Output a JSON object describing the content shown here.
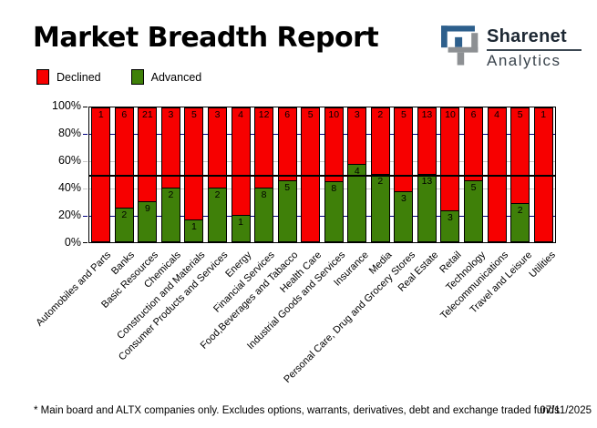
{
  "header": {
    "title": "Market Breadth Report"
  },
  "logo": {
    "name": "Sharenet",
    "sub": "Analytics",
    "blue": "#2d5f8c",
    "gray": "#8d9093"
  },
  "legend": {
    "items": [
      {
        "label": "Declined",
        "color": "#f70000"
      },
      {
        "label": "Advanced",
        "color": "#3f8009"
      }
    ]
  },
  "footer": {
    "note": "* Main board and ALTX companies only. Excludes options, warrants, derivatives, debt and exchange traded funds",
    "date": "07/11/2025"
  },
  "chart_data": {
    "type": "bar",
    "stacked": true,
    "normalized_percent": true,
    "title": "Market Breadth Report",
    "categories": [
      "Automobiles and Parts",
      "Banks",
      "Basic Resources",
      "Chemicals",
      "Construction and Materials",
      "Consumer Products and Services",
      "Energy",
      "Financial Services",
      "Food,Beverages and Tabacco",
      "Health Care",
      "Industrial Goods and Services",
      "Insurance",
      "Media",
      "Personal Care, Drug and Grocery Stores",
      "Real Estate",
      "Retail",
      "Technology",
      "Telecommunications",
      "Travel and Leisure",
      "Utilities"
    ],
    "series": [
      {
        "name": "Declined",
        "color": "#f70000",
        "values": [
          1,
          6,
          21,
          3,
          5,
          3,
          4,
          12,
          6,
          5,
          10,
          3,
          2,
          5,
          13,
          10,
          6,
          4,
          5,
          1
        ]
      },
      {
        "name": "Advanced",
        "color": "#3f8009",
        "values": [
          0,
          2,
          9,
          2,
          1,
          2,
          1,
          8,
          5,
          0,
          8,
          4,
          2,
          3,
          13,
          3,
          5,
          0,
          2,
          0
        ]
      }
    ],
    "xlabel": "",
    "ylabel": "",
    "ylim": [
      0,
      100
    ],
    "yticks": [
      "100%",
      "80%",
      "60%",
      "40%",
      "20%",
      "0%"
    ],
    "grid_navy_color": "#000080",
    "grid_gray_color": "#c6c6c6",
    "navy_levels": [
      80,
      20
    ],
    "gray_levels": [
      60,
      40
    ],
    "reference_line": 50,
    "legend_position": "top-left"
  }
}
